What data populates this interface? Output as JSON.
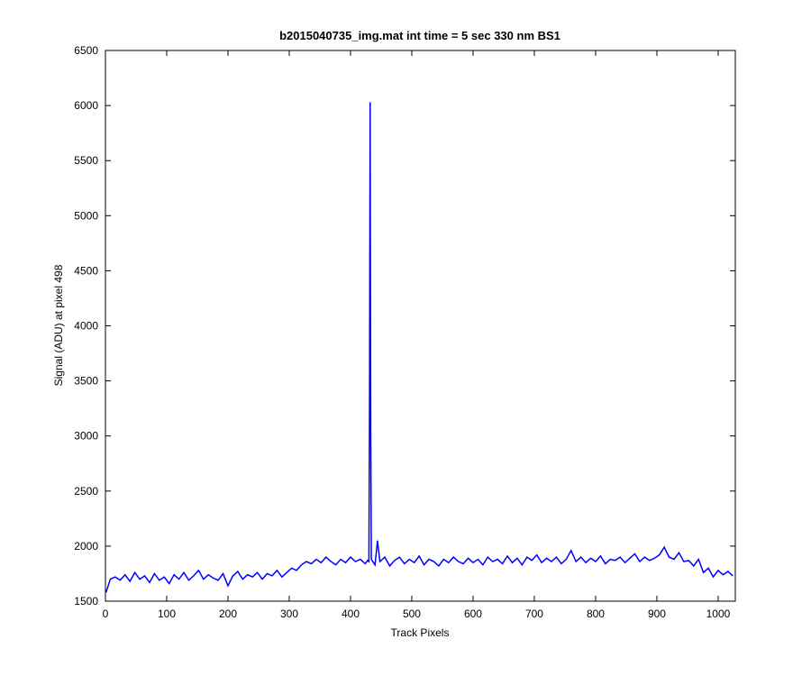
{
  "chart_data": {
    "type": "line",
    "title": "b2015040735_img.mat int time = 5 sec  330 nm BS1",
    "x_label": "Track Pixels",
    "y_label": "Signal (ADU) at pixel 498",
    "xlim": [
      0,
      1028
    ],
    "ylim": [
      1500,
      6500
    ],
    "xticks": [
      0,
      100,
      200,
      300,
      400,
      500,
      600,
      700,
      800,
      900,
      1000
    ],
    "yticks": [
      1500,
      2000,
      2500,
      3000,
      3500,
      4000,
      4500,
      5000,
      5500,
      6000,
      6500
    ],
    "grid": false,
    "series": [
      {
        "color": "#0000ff",
        "x": [
          1,
          8,
          16,
          24,
          32,
          40,
          48,
          56,
          64,
          72,
          80,
          88,
          96,
          104,
          112,
          120,
          128,
          136,
          144,
          152,
          160,
          168,
          176,
          184,
          192,
          200,
          208,
          216,
          224,
          232,
          240,
          248,
          256,
          264,
          272,
          280,
          288,
          296,
          304,
          312,
          320,
          328,
          336,
          344,
          352,
          360,
          368,
          376,
          384,
          392,
          400,
          408,
          416,
          424,
          428,
          430,
          431,
          432,
          433,
          434,
          440,
          444,
          448,
          456,
          464,
          472,
          480,
          488,
          496,
          504,
          512,
          520,
          528,
          536,
          544,
          552,
          560,
          568,
          576,
          584,
          592,
          600,
          608,
          616,
          624,
          632,
          640,
          648,
          656,
          664,
          672,
          680,
          688,
          696,
          704,
          712,
          720,
          728,
          736,
          744,
          752,
          760,
          768,
          776,
          784,
          792,
          800,
          808,
          816,
          824,
          832,
          840,
          848,
          856,
          864,
          872,
          880,
          888,
          896,
          904,
          912,
          920,
          928,
          936,
          944,
          952,
          960,
          968,
          976,
          984,
          992,
          1000,
          1008,
          1016,
          1024
        ],
        "values": [
          1580,
          1700,
          1720,
          1690,
          1740,
          1680,
          1760,
          1700,
          1730,
          1670,
          1750,
          1690,
          1720,
          1660,
          1740,
          1700,
          1760,
          1690,
          1730,
          1780,
          1700,
          1740,
          1710,
          1690,
          1750,
          1640,
          1730,
          1770,
          1700,
          1740,
          1720,
          1760,
          1700,
          1750,
          1730,
          1780,
          1720,
          1760,
          1800,
          1780,
          1830,
          1860,
          1840,
          1880,
          1850,
          1900,
          1860,
          1830,
          1880,
          1850,
          1900,
          1860,
          1880,
          1840,
          1870,
          1860,
          3220,
          6030,
          3050,
          1880,
          1830,
          2050,
          1860,
          1900,
          1820,
          1870,
          1900,
          1840,
          1880,
          1850,
          1910,
          1830,
          1880,
          1860,
          1820,
          1880,
          1850,
          1900,
          1860,
          1840,
          1890,
          1850,
          1880,
          1830,
          1900,
          1860,
          1880,
          1840,
          1910,
          1850,
          1890,
          1830,
          1900,
          1870,
          1920,
          1850,
          1890,
          1860,
          1900,
          1840,
          1880,
          1960,
          1860,
          1900,
          1850,
          1890,
          1860,
          1910,
          1840,
          1880,
          1870,
          1900,
          1850,
          1890,
          1930,
          1860,
          1900,
          1870,
          1890,
          1920,
          1990,
          1900,
          1880,
          1940,
          1860,
          1870,
          1820,
          1880,
          1760,
          1800,
          1720,
          1780,
          1740,
          1770,
          1730
        ]
      }
    ]
  }
}
